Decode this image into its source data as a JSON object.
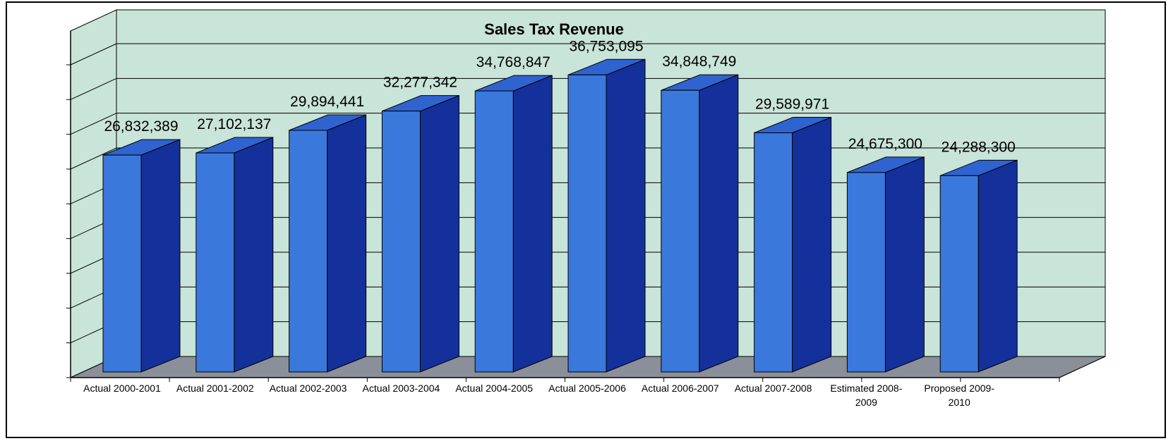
{
  "colors": {
    "wall": "#c9e4d8",
    "floor": "#8a8f99",
    "bar_front": "#3a78dc",
    "bar_side": "#14309a",
    "bar_top": "#2f63d0",
    "outline": "#000000"
  },
  "chart_data": {
    "type": "bar",
    "title": "Sales Tax Revenue",
    "xlabel": "",
    "ylabel": "",
    "ylim": [
      0,
      40000000
    ],
    "grid": true,
    "legend": "none",
    "categories": [
      "Actual 2000-2001",
      "Actual 2001-2002",
      "Actual 2002-2003",
      "Actual 2003-2004",
      "Actual 2004-2005",
      "Actual 2005-2006",
      "Actual 2006-2007",
      "Actual 2007-2008",
      "Estimated 2008-2009",
      "Proposed 2009-2010"
    ],
    "category_lines": [
      [
        "Actual 2000-2001"
      ],
      [
        "Actual 2001-2002"
      ],
      [
        "Actual 2002-2003"
      ],
      [
        "Actual 2003-2004"
      ],
      [
        "Actual 2004-2005"
      ],
      [
        "Actual 2005-2006"
      ],
      [
        "Actual 2006-2007"
      ],
      [
        "Actual 2007-2008"
      ],
      [
        "Estimated 2008-",
        "2009"
      ],
      [
        "Proposed 2009-",
        "2010"
      ]
    ],
    "values": [
      26832389,
      27102137,
      29894441,
      32277342,
      34768847,
      36753095,
      34848749,
      29589971,
      24675300,
      24288300
    ],
    "labels": [
      "26,832,389",
      "27,102,137",
      "29,894,441",
      "32,277,342",
      "34,768,847",
      "36,753,095",
      "34,848,749",
      "29,589,971",
      "24,675,300",
      "24,288,300"
    ]
  }
}
